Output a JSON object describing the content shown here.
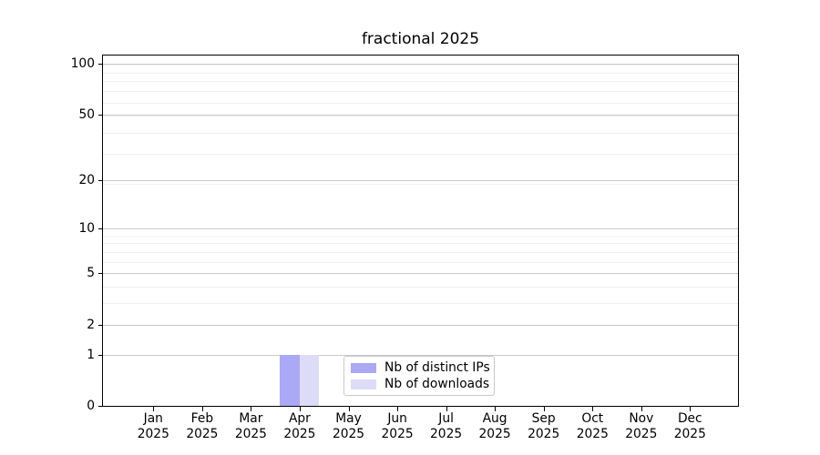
{
  "chart_data": {
    "type": "bar",
    "title": "fractional 2025",
    "x_axis": {
      "months": [
        "Jan",
        "Feb",
        "Mar",
        "Apr",
        "May",
        "Jun",
        "Jul",
        "Aug",
        "Sep",
        "Oct",
        "Nov",
        "Dec"
      ],
      "year": "2025"
    },
    "y_axis": {
      "scale": "log1p",
      "tick_values": [
        0,
        1,
        2,
        5,
        10,
        20,
        50,
        100
      ],
      "minor_tick_values": [
        3,
        4,
        6,
        7,
        8,
        9,
        19,
        29,
        39,
        49,
        59,
        69,
        79,
        89,
        99
      ],
      "max": 112
    },
    "series": [
      {
        "name": "Nb of distinct IPs",
        "color": "#a9a9f5",
        "values": [
          0,
          0,
          0,
          1,
          0,
          0,
          0,
          0,
          0,
          0,
          0,
          0
        ]
      },
      {
        "name": "Nb of downloads",
        "color": "#dcdcf8",
        "values": [
          0,
          0,
          0,
          1,
          0,
          0,
          0,
          0,
          0,
          0,
          0,
          0
        ]
      }
    ],
    "legend": {
      "position": "lower center",
      "items": [
        "Nb of distinct IPs",
        "Nb of downloads"
      ]
    },
    "grid": "horizontal-only"
  }
}
